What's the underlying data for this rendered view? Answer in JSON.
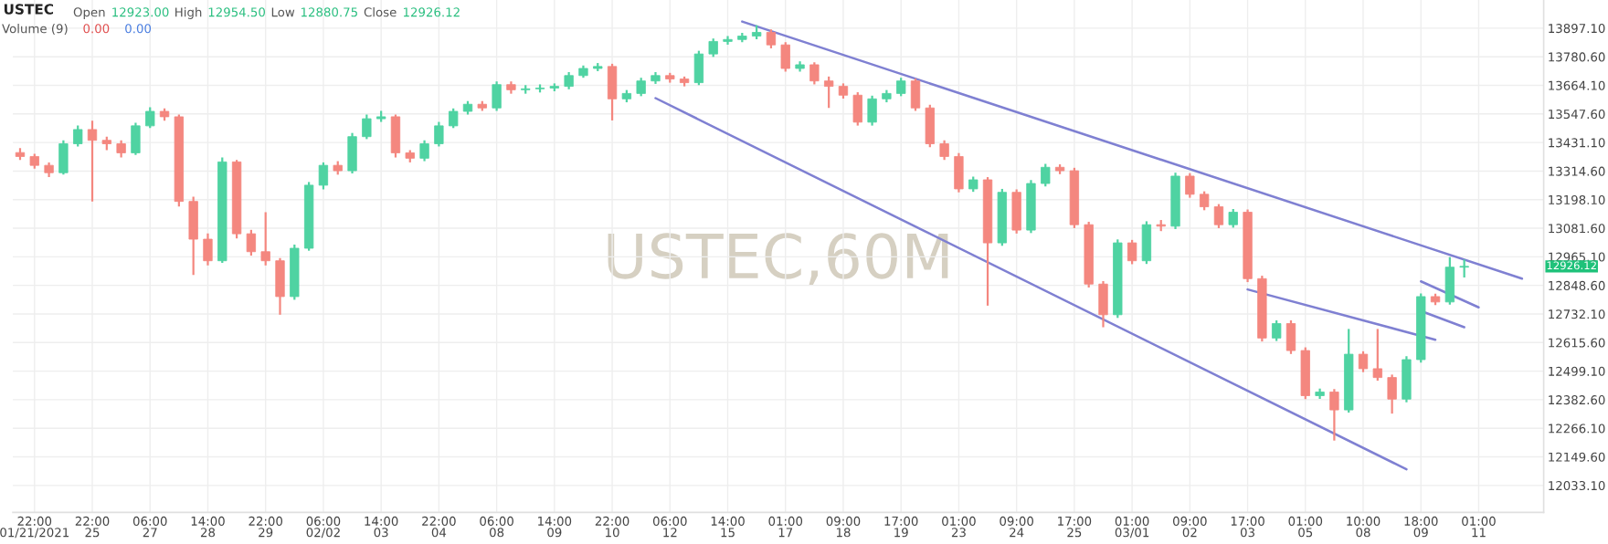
{
  "chart_data": {
    "type": "candlestick",
    "title": "USTEC",
    "categories": [
      null,
      "22:00\n01/21/2021",
      null,
      null,
      null,
      "22:00\n25",
      null,
      null,
      null,
      "06:00\n27",
      null,
      null,
      null,
      "14:00\n28",
      null,
      null,
      null,
      "22:00\n29",
      null,
      null,
      null,
      "06:00\n02/02",
      null,
      null,
      null,
      "14:00\n03",
      null,
      null,
      null,
      "22:00\n04",
      null,
      null,
      null,
      "06:00\n08",
      null,
      null,
      null,
      "14:00\n09",
      null,
      null,
      null,
      "22:00\n10",
      null,
      null,
      null,
      "06:00\n12",
      null,
      null,
      null,
      "14:00\n15",
      null,
      null,
      null,
      "01:00\n17",
      null,
      null,
      null,
      "09:00\n18",
      null,
      null,
      null,
      "17:00\n19",
      null,
      null,
      null,
      "01:00\n23",
      null,
      null,
      null,
      "09:00\n24",
      null,
      null,
      null,
      "17:00\n25",
      null,
      null,
      null,
      "01:00\n03/01",
      null,
      null,
      null,
      "09:00\n02",
      null,
      null,
      null,
      "17:00\n03",
      null,
      null,
      null,
      "01:00\n05",
      null,
      null,
      null,
      "10:00\n08",
      null,
      null,
      null,
      "18:00\n09",
      null,
      null,
      null,
      "01:00\n11",
      null,
      null,
      null,
      null
    ],
    "ohlc": [
      [
        13390,
        13408,
        13360,
        13374
      ],
      [
        13374,
        13385,
        13325,
        13338
      ],
      [
        13338,
        13350,
        13290,
        13308
      ],
      [
        13308,
        13440,
        13300,
        13426
      ],
      [
        13426,
        13500,
        13415,
        13484
      ],
      [
        13484,
        13520,
        13191,
        13440
      ],
      [
        13440,
        13455,
        13400,
        13426
      ],
      [
        13426,
        13440,
        13370,
        13389
      ],
      [
        13389,
        13512,
        13380,
        13499
      ],
      [
        13499,
        13575,
        13490,
        13558
      ],
      [
        13558,
        13570,
        13520,
        13536
      ],
      [
        13536,
        13545,
        13170,
        13191
      ],
      [
        13191,
        13210,
        12891,
        13037
      ],
      [
        13037,
        13060,
        12930,
        12949
      ],
      [
        12949,
        13370,
        12940,
        13352
      ],
      [
        13352,
        13360,
        13040,
        13059
      ],
      [
        13059,
        13075,
        12970,
        12986
      ],
      [
        12986,
        13147,
        12930,
        12949
      ],
      [
        12949,
        12960,
        12729,
        12803
      ],
      [
        12803,
        13015,
        12790,
        13000
      ],
      [
        13000,
        13270,
        12990,
        13257
      ],
      [
        13257,
        13350,
        13240,
        13338
      ],
      [
        13338,
        13355,
        13300,
        13316
      ],
      [
        13316,
        13470,
        13305,
        13455
      ],
      [
        13455,
        13545,
        13445,
        13528
      ],
      [
        13528,
        13560,
        13515,
        13536
      ],
      [
        13536,
        13545,
        13370,
        13389
      ],
      [
        13389,
        13400,
        13350,
        13367
      ],
      [
        13367,
        13440,
        13355,
        13426
      ],
      [
        13426,
        13515,
        13415,
        13499
      ],
      [
        13499,
        13570,
        13490,
        13558
      ],
      [
        13558,
        13600,
        13545,
        13587
      ],
      [
        13587,
        13600,
        13560,
        13572
      ],
      [
        13572,
        13680,
        13560,
        13667
      ],
      [
        13667,
        13680,
        13630,
        13646
      ],
      [
        13646,
        13665,
        13630,
        13650
      ],
      [
        13650,
        13668,
        13635,
        13653
      ],
      [
        13653,
        13672,
        13640,
        13660
      ],
      [
        13660,
        13718,
        13648,
        13704
      ],
      [
        13704,
        13745,
        13695,
        13733
      ],
      [
        13733,
        13755,
        13722,
        13741
      ],
      [
        13741,
        13752,
        13521,
        13609
      ],
      [
        13609,
        13645,
        13595,
        13631
      ],
      [
        13631,
        13695,
        13620,
        13682
      ],
      [
        13682,
        13718,
        13670,
        13704
      ],
      [
        13704,
        13715,
        13675,
        13690
      ],
      [
        13690,
        13700,
        13660,
        13675
      ],
      [
        13675,
        13805,
        13665,
        13792
      ],
      [
        13792,
        13855,
        13780,
        13843
      ],
      [
        13843,
        13865,
        13830,
        13851
      ],
      [
        13851,
        13878,
        13840,
        13865
      ],
      [
        13865,
        13909,
        13852,
        13880
      ],
      [
        13880,
        13892,
        13815,
        13829
      ],
      [
        13829,
        13840,
        13720,
        13733
      ],
      [
        13733,
        13762,
        13720,
        13748
      ],
      [
        13748,
        13758,
        13668,
        13682
      ],
      [
        13682,
        13700,
        13572,
        13660
      ],
      [
        13660,
        13672,
        13610,
        13624
      ],
      [
        13624,
        13636,
        13500,
        13514
      ],
      [
        13514,
        13622,
        13500,
        13609
      ],
      [
        13609,
        13645,
        13595,
        13631
      ],
      [
        13631,
        13695,
        13620,
        13682
      ],
      [
        13682,
        13692,
        13560,
        13572
      ],
      [
        13572,
        13585,
        13412,
        13426
      ],
      [
        13426,
        13440,
        13360,
        13374
      ],
      [
        13374,
        13388,
        13228,
        13242
      ],
      [
        13242,
        13292,
        13230,
        13279
      ],
      [
        13279,
        13290,
        12766,
        13022
      ],
      [
        13022,
        13242,
        13010,
        13228
      ],
      [
        13228,
        13240,
        13060,
        13074
      ],
      [
        13074,
        13278,
        13062,
        13264
      ],
      [
        13264,
        13344,
        13252,
        13330
      ],
      [
        13330,
        13342,
        13302,
        13316
      ],
      [
        13316,
        13328,
        13082,
        13096
      ],
      [
        13096,
        13108,
        12840,
        12854
      ],
      [
        12854,
        12866,
        12678,
        12729
      ],
      [
        12729,
        13036,
        12716,
        13022
      ],
      [
        13022,
        13034,
        12935,
        12949
      ],
      [
        12949,
        13110,
        12936,
        13096
      ],
      [
        13096,
        13115,
        13070,
        13090
      ],
      [
        13090,
        13308,
        13078,
        13294
      ],
      [
        13294,
        13306,
        13206,
        13220
      ],
      [
        13220,
        13232,
        13155,
        13169
      ],
      [
        13169,
        13180,
        13082,
        13096
      ],
      [
        13096,
        13160,
        13084,
        13147
      ],
      [
        13147,
        13158,
        12862,
        12876
      ],
      [
        12876,
        12888,
        12620,
        12634
      ],
      [
        12634,
        12706,
        12622,
        12693
      ],
      [
        12693,
        12706,
        12569,
        12583
      ],
      [
        12583,
        12596,
        12385,
        12399
      ],
      [
        12399,
        12428,
        12386,
        12414
      ],
      [
        12414,
        12426,
        12216,
        12341
      ],
      [
        12341,
        12671,
        12330,
        12568
      ],
      [
        12568,
        12580,
        12495,
        12509
      ],
      [
        12509,
        12671,
        12460,
        12473
      ],
      [
        12473,
        12485,
        12326,
        12385
      ],
      [
        12385,
        12560,
        12372,
        12546
      ],
      [
        12546,
        12816,
        12534,
        12803
      ],
      [
        12803,
        12815,
        12768,
        12781
      ],
      [
        12781,
        12964,
        12770,
        12923
      ],
      [
        12923,
        12954.5,
        12880.75,
        12926.12
      ],
      null,
      null,
      null,
      null,
      null
    ],
    "colors": [
      "#f4877f",
      "#f4877f",
      "#f4877f",
      "#4fd3a2",
      "#4fd3a2",
      "#f4877f",
      "#f4877f",
      "#f4877f",
      "#4fd3a2",
      "#4fd3a2",
      "#f4877f",
      "#f4877f",
      "#f4877f",
      "#f4877f",
      "#4fd3a2",
      "#f4877f",
      "#f4877f",
      "#f4877f",
      "#f4877f",
      "#4fd3a2",
      "#4fd3a2",
      "#4fd3a2",
      "#f4877f",
      "#4fd3a2",
      "#4fd3a2",
      "#4fd3a2",
      "#f4877f",
      "#f4877f",
      "#4fd3a2",
      "#4fd3a2",
      "#4fd3a2",
      "#4fd3a2",
      "#f4877f",
      "#4fd3a2",
      "#f4877f",
      "#4fd3a2",
      "#4fd3a2",
      "#4fd3a2",
      "#4fd3a2",
      "#4fd3a2",
      "#4fd3a2",
      "#f4877f",
      "#4fd3a2",
      "#4fd3a2",
      "#4fd3a2",
      "#f4877f",
      "#f4877f",
      "#4fd3a2",
      "#4fd3a2",
      "#4fd3a2",
      "#4fd3a2",
      "#4fd3a2",
      "#f4877f",
      "#f4877f",
      "#4fd3a2",
      "#f4877f",
      "#f4877f",
      "#f4877f",
      "#f4877f",
      "#4fd3a2",
      "#4fd3a2",
      "#4fd3a2",
      "#f4877f",
      "#f4877f",
      "#f4877f",
      "#f4877f",
      "#4fd3a2",
      "#f4877f",
      "#4fd3a2",
      "#f4877f",
      "#4fd3a2",
      "#4fd3a2",
      "#f4877f",
      "#f4877f",
      "#f4877f",
      "#f4877f",
      "#4fd3a2",
      "#f4877f",
      "#4fd3a2",
      "#f4877f",
      "#4fd3a2",
      "#f4877f",
      "#f4877f",
      "#f4877f",
      "#4fd3a2",
      "#f4877f",
      "#f4877f",
      "#4fd3a2",
      "#f4877f",
      "#f4877f",
      "#4fd3a2",
      "#f4877f",
      "#4fd3a2",
      "#f4877f",
      "#f4877f",
      "#f4877f",
      "#4fd3a2",
      "#4fd3a2",
      "#f4877f",
      "#4fd3a2",
      "#4fd3a2",
      null,
      null,
      null,
      null,
      null
    ],
    "series": [
      {
        "type": "line",
        "color": "#7f80d2",
        "values": [
          null,
          null,
          null,
          null,
          null,
          null,
          null,
          null,
          null,
          null,
          null,
          null,
          null,
          null,
          null,
          null,
          null,
          null,
          null,
          null,
          null,
          null,
          null,
          null,
          null,
          null,
          null,
          null,
          null,
          null,
          null,
          null,
          null,
          null,
          null,
          null,
          null,
          null,
          null,
          null,
          null,
          null,
          null,
          null,
          null,
          null,
          null,
          null,
          null,
          null,
          13924,
          null,
          null,
          null,
          null,
          null,
          null,
          null,
          null,
          null,
          null,
          null,
          null,
          null,
          null,
          null,
          null,
          null,
          null,
          null,
          null,
          null,
          null,
          null,
          null,
          null,
          null,
          null,
          null,
          null,
          null,
          null,
          null,
          null,
          null,
          null,
          null,
          null,
          null,
          null,
          null,
          null,
          null,
          null,
          null,
          null,
          null,
          null,
          null,
          null,
          null,
          null,
          null,
          null,
          12876,
          null
        ]
      },
      {
        "type": "line",
        "color": "#7f80d2",
        "values": [
          null,
          null,
          null,
          null,
          null,
          null,
          null,
          null,
          null,
          null,
          null,
          null,
          null,
          null,
          null,
          null,
          null,
          null,
          null,
          null,
          null,
          null,
          null,
          null,
          null,
          null,
          null,
          null,
          null,
          null,
          null,
          null,
          null,
          null,
          null,
          null,
          null,
          null,
          null,
          null,
          null,
          null,
          null,
          null,
          13612,
          null,
          null,
          null,
          null,
          null,
          null,
          null,
          null,
          null,
          null,
          null,
          null,
          null,
          null,
          null,
          null,
          null,
          null,
          null,
          null,
          null,
          null,
          null,
          null,
          null,
          null,
          null,
          null,
          null,
          null,
          null,
          null,
          null,
          null,
          null,
          null,
          null,
          null,
          null,
          null,
          null,
          null,
          null,
          null,
          null,
          null,
          null,
          null,
          null,
          null,
          null,
          12099,
          null,
          null,
          null,
          null,
          null,
          null,
          null,
          null,
          null
        ]
      },
      {
        "type": "line",
        "color": "#7f80d2",
        "values": [
          null,
          null,
          null,
          null,
          null,
          null,
          null,
          null,
          null,
          null,
          null,
          null,
          null,
          null,
          null,
          null,
          null,
          null,
          null,
          null,
          null,
          null,
          null,
          null,
          null,
          null,
          null,
          null,
          null,
          null,
          null,
          null,
          null,
          null,
          null,
          null,
          null,
          null,
          null,
          null,
          null,
          null,
          null,
          null,
          null,
          null,
          null,
          null,
          null,
          null,
          null,
          null,
          null,
          null,
          null,
          null,
          null,
          null,
          null,
          null,
          null,
          null,
          null,
          null,
          null,
          null,
          null,
          null,
          null,
          null,
          null,
          null,
          null,
          null,
          null,
          null,
          null,
          null,
          null,
          null,
          null,
          null,
          null,
          null,
          null,
          12832,
          null,
          null,
          null,
          null,
          null,
          null,
          null,
          null,
          null,
          null,
          null,
          null,
          12627,
          null,
          null,
          null,
          null,
          null,
          null,
          null
        ]
      },
      {
        "type": "line",
        "color": "#7f80d2",
        "values": [
          null,
          null,
          null,
          null,
          null,
          null,
          null,
          null,
          null,
          null,
          null,
          null,
          null,
          null,
          null,
          null,
          null,
          null,
          null,
          null,
          null,
          null,
          null,
          null,
          null,
          null,
          null,
          null,
          null,
          null,
          null,
          null,
          null,
          null,
          null,
          null,
          null,
          null,
          null,
          null,
          null,
          null,
          null,
          null,
          null,
          null,
          null,
          null,
          null,
          null,
          null,
          null,
          null,
          null,
          null,
          null,
          null,
          null,
          null,
          null,
          null,
          null,
          null,
          null,
          null,
          null,
          null,
          null,
          null,
          null,
          null,
          null,
          null,
          null,
          null,
          null,
          null,
          null,
          null,
          null,
          null,
          null,
          null,
          null,
          null,
          null,
          null,
          null,
          null,
          null,
          null,
          null,
          null,
          null,
          null,
          null,
          null,
          12865,
          null,
          null,
          null,
          12759,
          null,
          null,
          null,
          null
        ]
      },
      {
        "type": "line",
        "color": "#7f80d2",
        "values": [
          null,
          null,
          null,
          null,
          null,
          null,
          null,
          null,
          null,
          null,
          null,
          null,
          null,
          null,
          null,
          null,
          null,
          null,
          null,
          null,
          null,
          null,
          null,
          null,
          null,
          null,
          null,
          null,
          null,
          null,
          null,
          null,
          null,
          null,
          null,
          null,
          null,
          null,
          null,
          null,
          null,
          null,
          null,
          null,
          null,
          null,
          null,
          null,
          null,
          null,
          null,
          null,
          null,
          null,
          null,
          null,
          null,
          null,
          null,
          null,
          null,
          null,
          null,
          null,
          null,
          null,
          null,
          null,
          null,
          null,
          null,
          null,
          null,
          null,
          null,
          null,
          null,
          null,
          null,
          null,
          null,
          null,
          null,
          null,
          null,
          null,
          null,
          null,
          null,
          null,
          null,
          null,
          null,
          null,
          null,
          null,
          null,
          12744,
          null,
          null,
          12678,
          null,
          null,
          null,
          null,
          null
        ]
      }
    ],
    "ylim": [
      11923,
      14012
    ],
    "yticks": [
      {
        "value": 13897.1,
        "label": "13897.10"
      },
      {
        "value": 13780.6,
        "label": "13780.60"
      },
      {
        "value": 13664.1,
        "label": "13664.10"
      },
      {
        "value": 13547.6,
        "label": "13547.60"
      },
      {
        "value": 13431.1,
        "label": "13431.10"
      },
      {
        "value": 13314.6,
        "label": "13314.60"
      },
      {
        "value": 13198.1,
        "label": "13198.10"
      },
      {
        "value": 13081.6,
        "label": "13081.60"
      },
      {
        "value": 12965.1,
        "label": "12965.10"
      },
      {
        "value": 12848.6,
        "label": "12848.60"
      },
      {
        "value": 12732.1,
        "label": "12732.10"
      },
      {
        "value": 12615.6,
        "label": "12615.60"
      },
      {
        "value": 12499.1,
        "label": "12499.10"
      },
      {
        "value": 12382.6,
        "label": "12382.60"
      },
      {
        "value": 12266.1,
        "label": "12266.10"
      },
      {
        "value": 12149.6,
        "label": "12149.60"
      },
      {
        "value": 12033.1,
        "label": "12033.10"
      }
    ],
    "grid": true,
    "annotations": [
      "Open",
      "12923.00",
      "High",
      "12954.50",
      "Low",
      "12880.75",
      "Close",
      "12926.12",
      "Volume (9)",
      "0.00",
      "0.00",
      "USTEC,60M",
      "12926.12"
    ]
  }
}
